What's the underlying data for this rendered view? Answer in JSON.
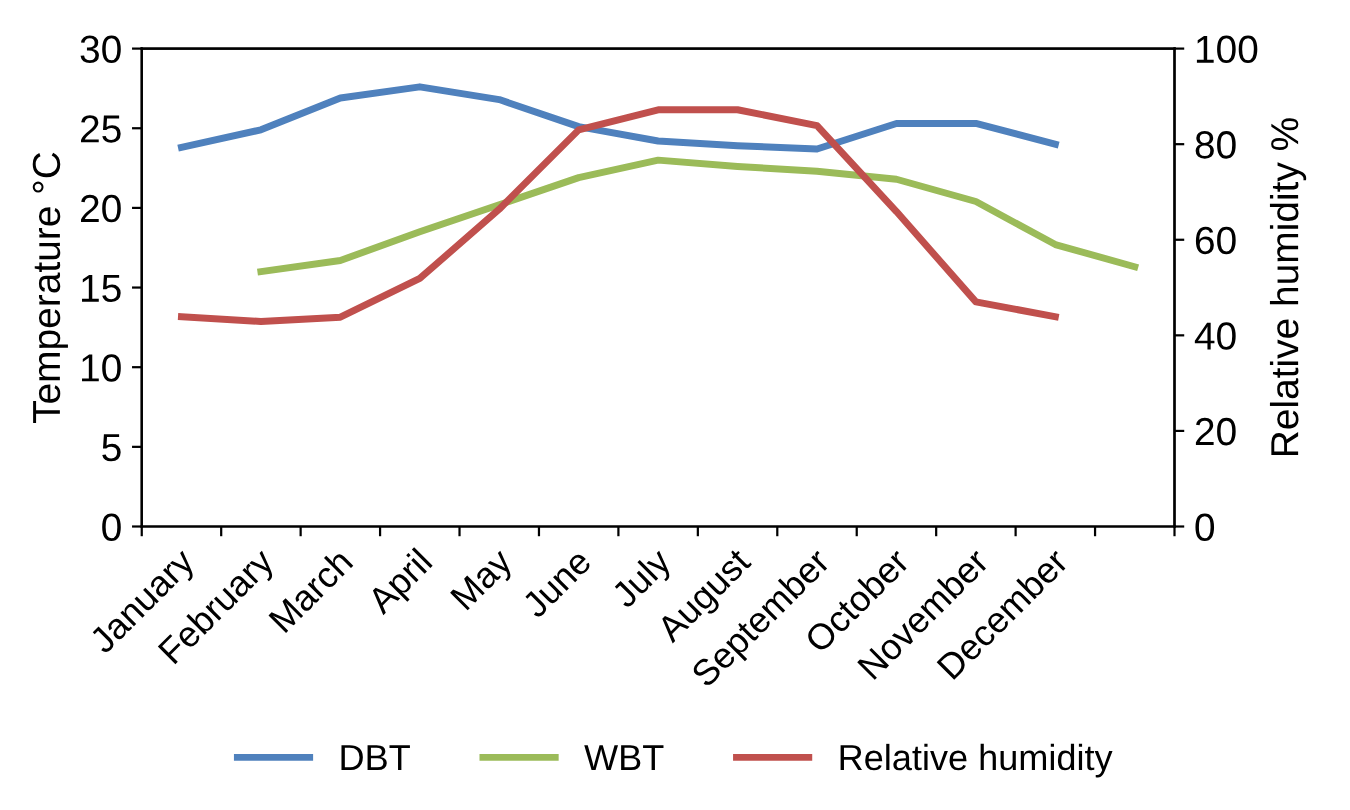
{
  "chart_data": {
    "type": "line",
    "ylabel": "Temperature °C",
    "y2label": "Relative humidity %",
    "categories": [
      "January",
      "February",
      "March",
      "April",
      "May",
      "June",
      "July",
      "August",
      "September",
      "October",
      "November",
      "December",
      null
    ],
    "series": [
      {
        "name": "DBT",
        "color": "#4f81bd",
        "values": [
          23.8,
          24.9,
          26.9,
          27.6,
          26.8,
          25.1,
          24.2,
          23.9,
          23.7,
          25.3,
          25.3,
          24.0,
          null
        ]
      },
      {
        "name": "WBT",
        "color": "#9bbb59",
        "values": [
          null,
          16.0,
          16.7,
          18.5,
          20.2,
          21.9,
          23.0,
          22.6,
          22.3,
          21.8,
          20.4,
          17.7,
          16.3
        ]
      },
      {
        "name": "Relative humidity",
        "color": "#c0504d",
        "axis": "y2",
        "values": [
          43.9,
          42.9,
          43.8,
          51.9,
          66.4,
          83.0,
          87.2,
          87.2,
          83.9,
          65.9,
          47.0,
          43.9,
          null
        ]
      }
    ],
    "ylim": [
      0,
      30
    ],
    "yticks": [
      0,
      5,
      10,
      15,
      20,
      25,
      30
    ],
    "y2lim": [
      0,
      100
    ],
    "y2ticks": [
      0,
      20,
      40,
      60,
      80,
      100
    ],
    "grid": false,
    "legend": "bottom",
    "marker": "none",
    "line_style": "solid"
  }
}
